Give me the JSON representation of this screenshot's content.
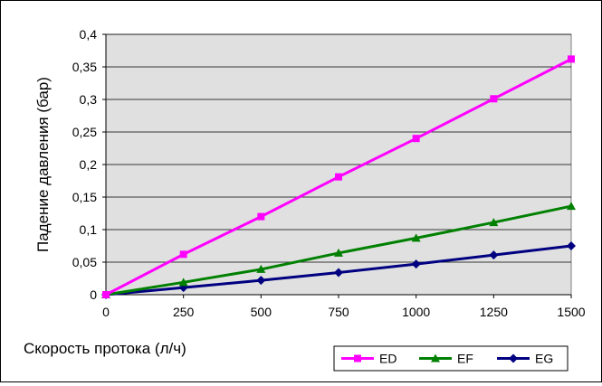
{
  "chart_data": {
    "type": "line",
    "title": "",
    "xlabel": "Скорость протока (л/ч)",
    "ylabel": "Падение давления (бар)",
    "x": [
      0,
      250,
      500,
      750,
      1000,
      1250,
      1500
    ],
    "xlim": [
      0,
      1500
    ],
    "ylim": [
      0,
      0.4
    ],
    "xticks": [
      "0",
      "250",
      "500",
      "750",
      "1000",
      "1250",
      "1500"
    ],
    "yticks": [
      "0",
      "0,05",
      "0,1",
      "0,15",
      "0,2",
      "0,25",
      "0,3",
      "0,35",
      "0,4"
    ],
    "grid": "horizontal",
    "plot_background": "#e0e0e0",
    "legend_position": "bottom-right",
    "series": [
      {
        "name": "ED",
        "color": "#ff00ff",
        "marker": "square",
        "values": [
          0,
          0.062,
          0.12,
          0.181,
          0.24,
          0.301,
          0.362
        ]
      },
      {
        "name": "EF",
        "color": "#008000",
        "marker": "triangle",
        "values": [
          0,
          0.019,
          0.039,
          0.064,
          0.087,
          0.111,
          0.136
        ]
      },
      {
        "name": "EG",
        "color": "#000080",
        "marker": "diamond",
        "values": [
          0,
          0.011,
          0.022,
          0.034,
          0.047,
          0.061,
          0.075
        ]
      }
    ]
  }
}
